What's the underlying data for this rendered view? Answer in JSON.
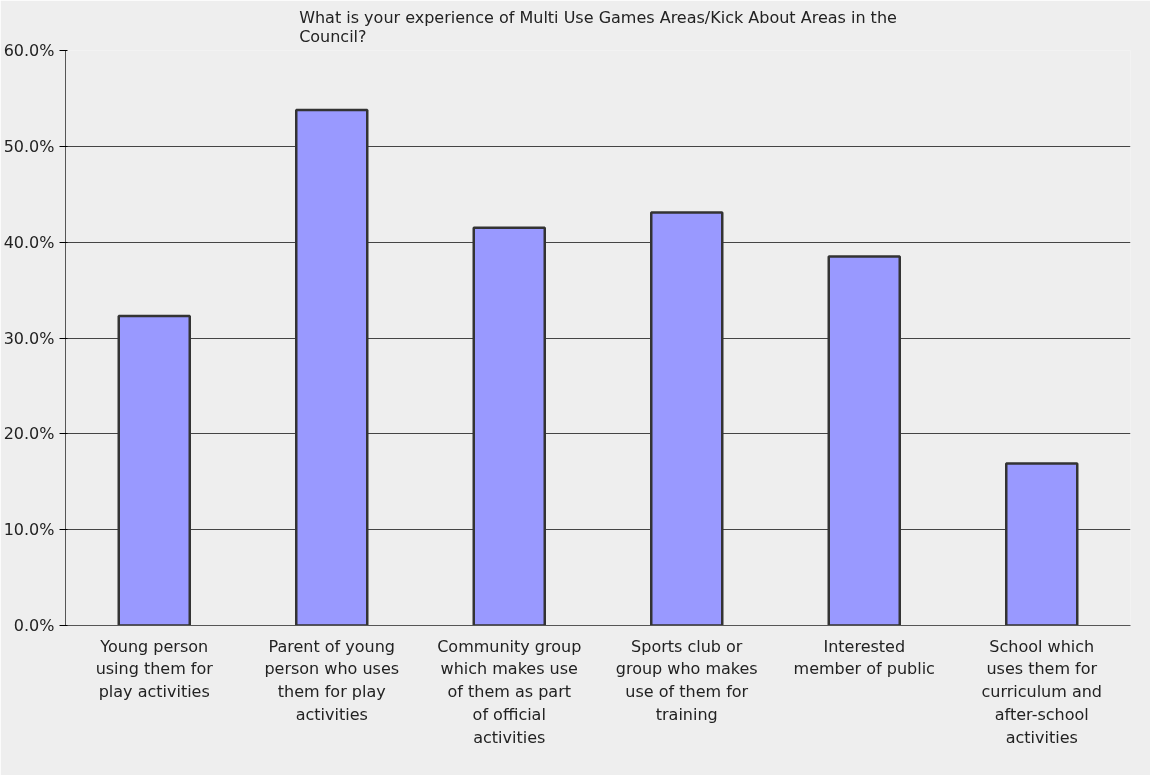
{
  "chart_data": {
    "type": "bar",
    "title": "What is your experience of Multi Use Games Areas/Kick About Areas in the Council?",
    "categories": [
      "Young person using them for play activities",
      "Parent of young person who uses them for play activities",
      "Community group which makes use of them as part of official activities",
      "Sports club or group who makes use of them for training",
      "Interested member of public",
      "School which uses them for curriculum and after-school activities"
    ],
    "values": [
      32.3,
      53.8,
      41.5,
      43.1,
      38.5,
      16.9
    ],
    "color": "#9999ff",
    "ylim": [
      0,
      60
    ],
    "yticks": [
      {
        "value": 0,
        "label": "0.0%"
      },
      {
        "value": 10,
        "label": "10.0%"
      },
      {
        "value": 20,
        "label": "20.0%"
      },
      {
        "value": 30,
        "label": "30.0%"
      },
      {
        "value": 40,
        "label": "40.0%"
      },
      {
        "value": 50,
        "label": "50.0%"
      },
      {
        "value": 60,
        "label": "60.0%"
      }
    ],
    "grid": "y"
  }
}
